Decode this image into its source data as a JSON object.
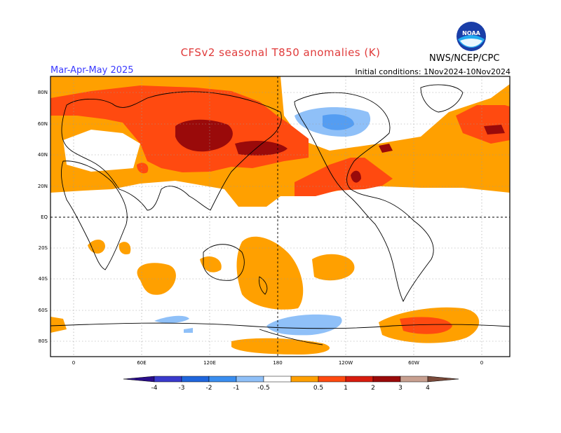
{
  "header": {
    "title": "CFSv2 seasonal T850 anomalies (K)",
    "period": "Mar-Apr-May 2025",
    "initial_conditions": "Initial conditions: 1Nov2024-10Nov2024",
    "agency": "NWS/NCEP/CPC",
    "logo_text": "NOAA"
  },
  "map": {
    "lat_labels": [
      "80N",
      "60N",
      "40N",
      "20N",
      "EQ",
      "20S",
      "40S",
      "60S",
      "80S"
    ],
    "lon_labels": [
      "0",
      "60E",
      "120E",
      "180",
      "120W",
      "60W",
      "0"
    ]
  },
  "colorbar": {
    "labels": [
      "-4",
      "-3",
      "-2",
      "-1",
      "-0.5",
      "0.5",
      "1",
      "2",
      "3",
      "4"
    ],
    "colors": [
      "#2a0d8a",
      "#3a3acc",
      "#1f66dd",
      "#3a8ef0",
      "#8fc0f8",
      "#ffffff",
      "#ffa000",
      "#ff4a10",
      "#d81c0e",
      "#9a0a0a",
      "#c8a090",
      "#7a4a3a"
    ]
  },
  "colors": {
    "light_orange": "#ffa000",
    "red": "#ff4a10",
    "dark_red": "#9a0a0a",
    "light_blue": "#8fc0f8",
    "blue": "#3a8ef0"
  }
}
